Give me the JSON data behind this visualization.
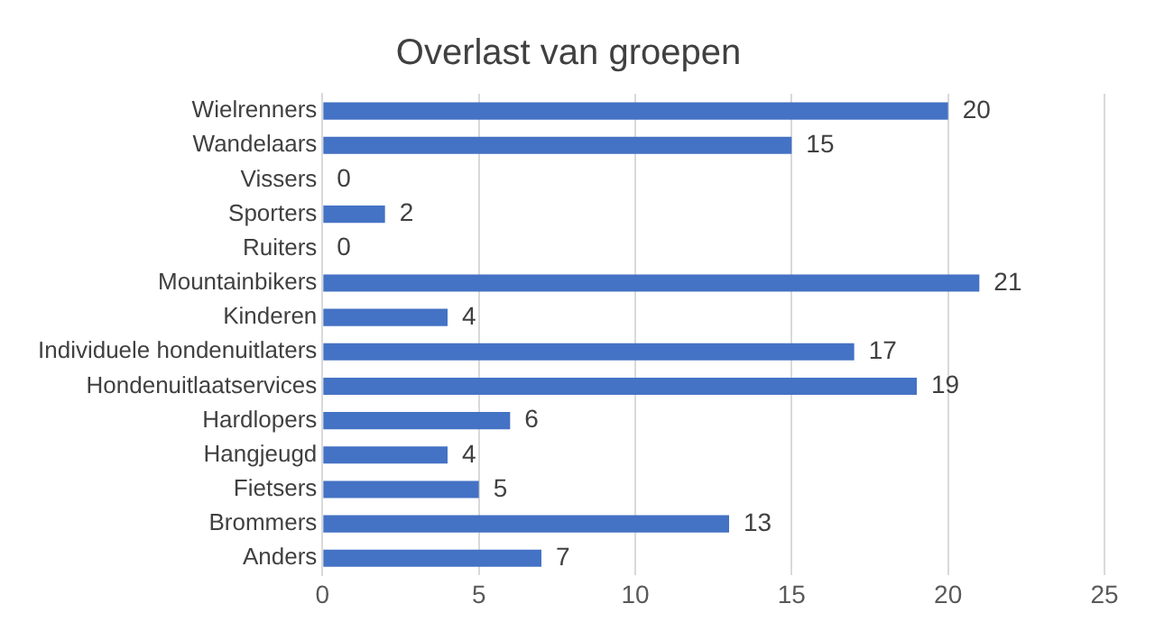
{
  "chart_data": {
    "type": "bar",
    "orientation": "horizontal",
    "title": "Overlast van groepen",
    "categories": [
      "Wielrenners",
      "Wandelaars",
      "Vissers",
      "Sporters",
      "Ruiters",
      "Mountainbikers",
      "Kinderen",
      "Individuele hondenuitlaters",
      "Hondenuitlaatservices",
      "Hardlopers",
      "Hangjeugd",
      "Fietsers",
      "Brommers",
      "Anders"
    ],
    "values": [
      20,
      15,
      0,
      2,
      0,
      21,
      4,
      17,
      19,
      6,
      4,
      5,
      13,
      7
    ],
    "color": "#4472c4",
    "xlim": [
      0,
      25
    ],
    "xticks": [
      0,
      5,
      10,
      15,
      20,
      25
    ],
    "grid": "x",
    "data_labels": true
  }
}
